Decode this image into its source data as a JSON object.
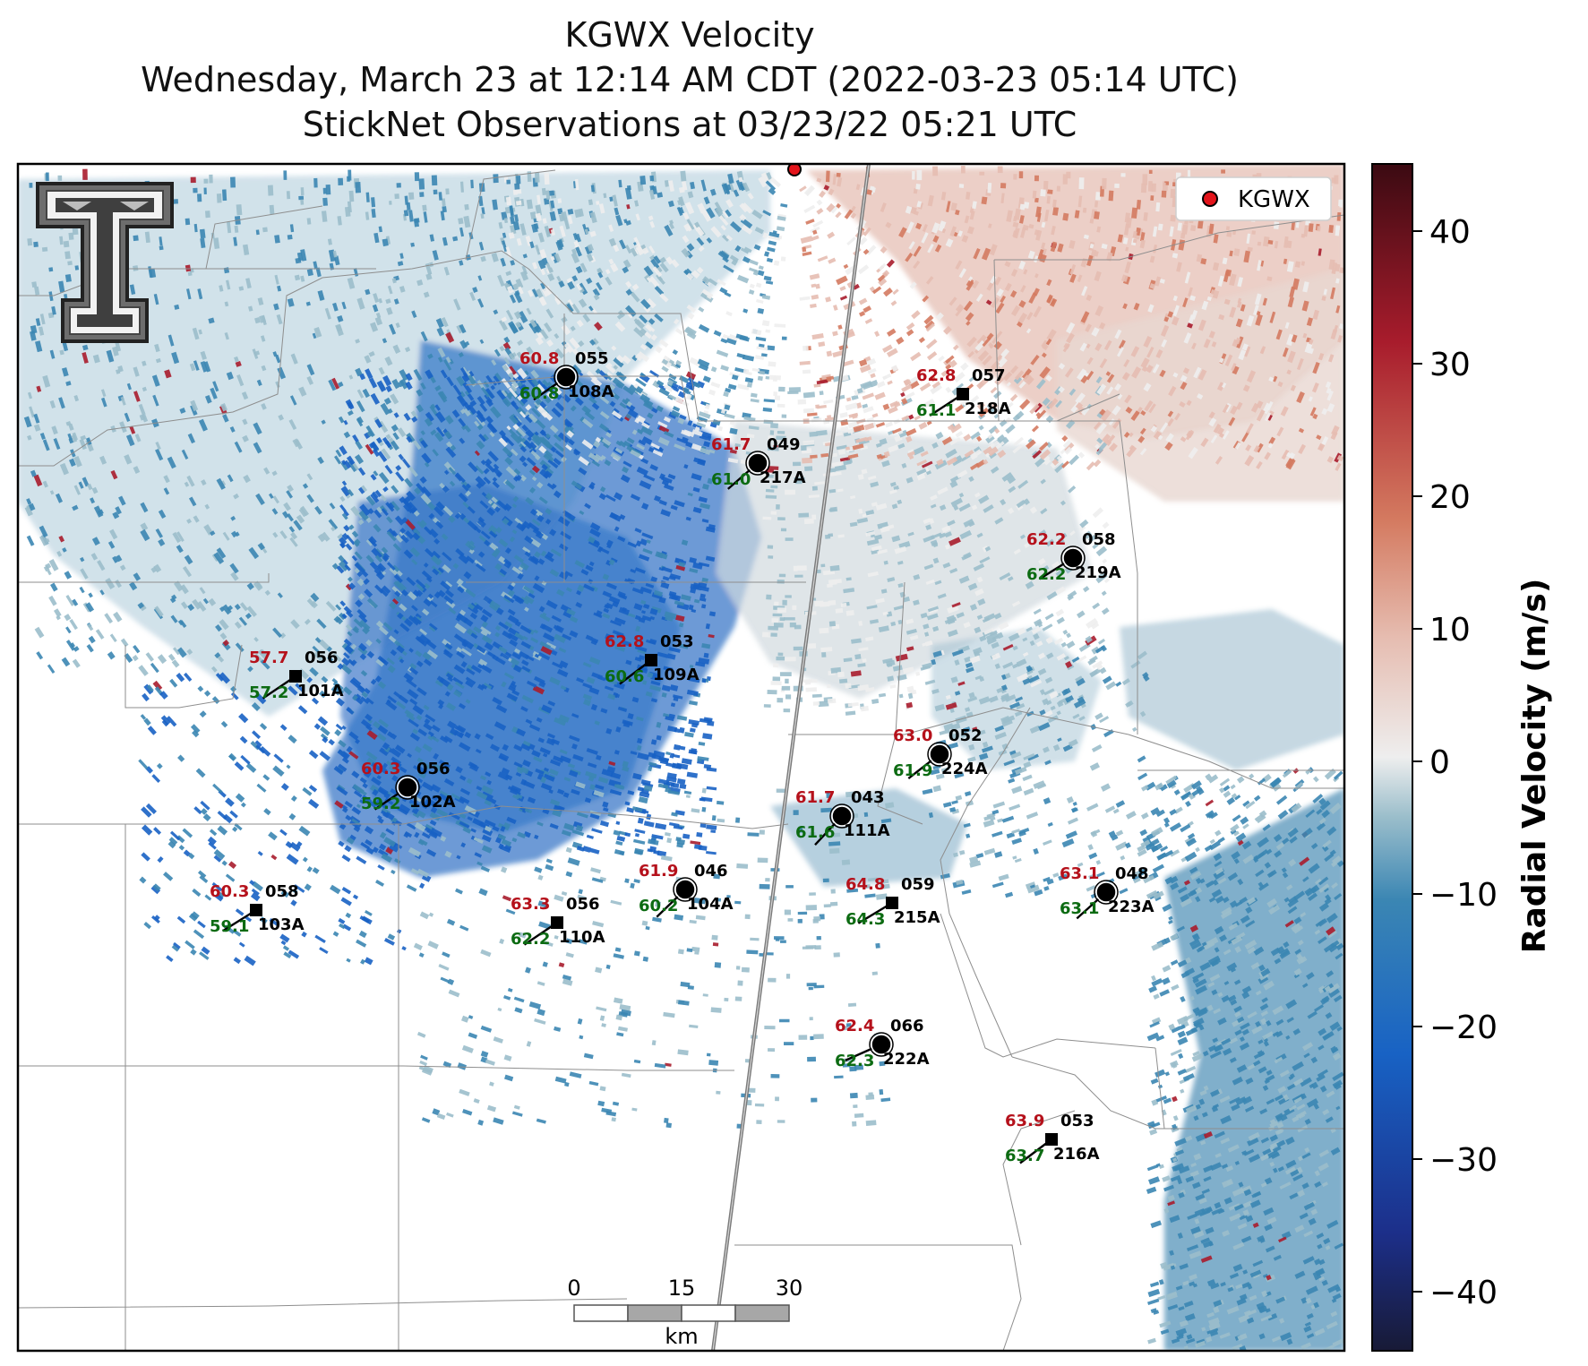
{
  "title": {
    "line1": "KGWX Velocity",
    "line2": "Wednesday, March 23 at 12:14 AM CDT (2022-03-23 05:14 UTC)",
    "line3": "StickNet Observations at 03/23/22 05:21 UTC"
  },
  "legend": {
    "label": "KGWX",
    "marker_color": "#e3141b"
  },
  "colorbar": {
    "label": "Radial Velocity (m/s)",
    "ticks": [
      "40",
      "30",
      "20",
      "10",
      "0",
      "−10",
      "−20",
      "−30",
      "−40"
    ],
    "colors": {
      "max": "#3b0a12",
      "strong_pos": "#a81c2c",
      "mid_pos": "#d47a60",
      "light_pos": "#e6bdb1",
      "zero": "#eeeeee",
      "light_neg": "#9bbecb",
      "mid_neg": "#3b86b3",
      "strong_neg": "#1862c4",
      "deep_neg": "#1c2f8a",
      "min": "#181a36"
    }
  },
  "scale_bar": {
    "labels": [
      "0",
      "15",
      "30"
    ],
    "unit": "km"
  },
  "logo": {
    "name": "texas-tech-double-t-logo"
  },
  "stations": [
    {
      "id": "108A",
      "temp": "60.8",
      "dew": "60.8",
      "dir": "055",
      "type": "circle"
    },
    {
      "id": "218A",
      "temp": "62.8",
      "dew": "61.1",
      "dir": "057",
      "type": "square"
    },
    {
      "id": "217A",
      "temp": "61.7",
      "dew": "61.0",
      "dir": "049",
      "type": "circle"
    },
    {
      "id": "219A",
      "temp": "62.2",
      "dew": "62.2",
      "dir": "058",
      "type": "circle"
    },
    {
      "id": "101A",
      "temp": "57.7",
      "dew": "57.2",
      "dir": "056",
      "type": "square"
    },
    {
      "id": "109A",
      "temp": "62.8",
      "dew": "60.6",
      "dir": "053",
      "type": "square"
    },
    {
      "id": "224A",
      "temp": "63.0",
      "dew": "61.9",
      "dir": "052",
      "type": "circle"
    },
    {
      "id": "102A",
      "temp": "60.3",
      "dew": "59.2",
      "dir": "056",
      "type": "circle"
    },
    {
      "id": "111A",
      "temp": "61.7",
      "dew": "61.6",
      "dir": "043",
      "type": "circle"
    },
    {
      "id": "103A",
      "temp": "60.3",
      "dew": "59.1",
      "dir": "058",
      "type": "square"
    },
    {
      "id": "110A",
      "temp": "63.3",
      "dew": "62.2",
      "dir": "056",
      "type": "square"
    },
    {
      "id": "104A",
      "temp": "61.9",
      "dew": "60.2",
      "dir": "046",
      "type": "circle"
    },
    {
      "id": "215A",
      "temp": "64.8",
      "dew": "64.3",
      "dir": "059",
      "type": "square"
    },
    {
      "id": "223A",
      "temp": "63.1",
      "dew": "63.1",
      "dir": "048",
      "type": "circle"
    },
    {
      "id": "222A",
      "temp": "62.4",
      "dew": "62.3",
      "dir": "066",
      "type": "circle"
    },
    {
      "id": "216A",
      "temp": "63.9",
      "dew": "63.7",
      "dir": "053",
      "type": "square"
    }
  ]
}
